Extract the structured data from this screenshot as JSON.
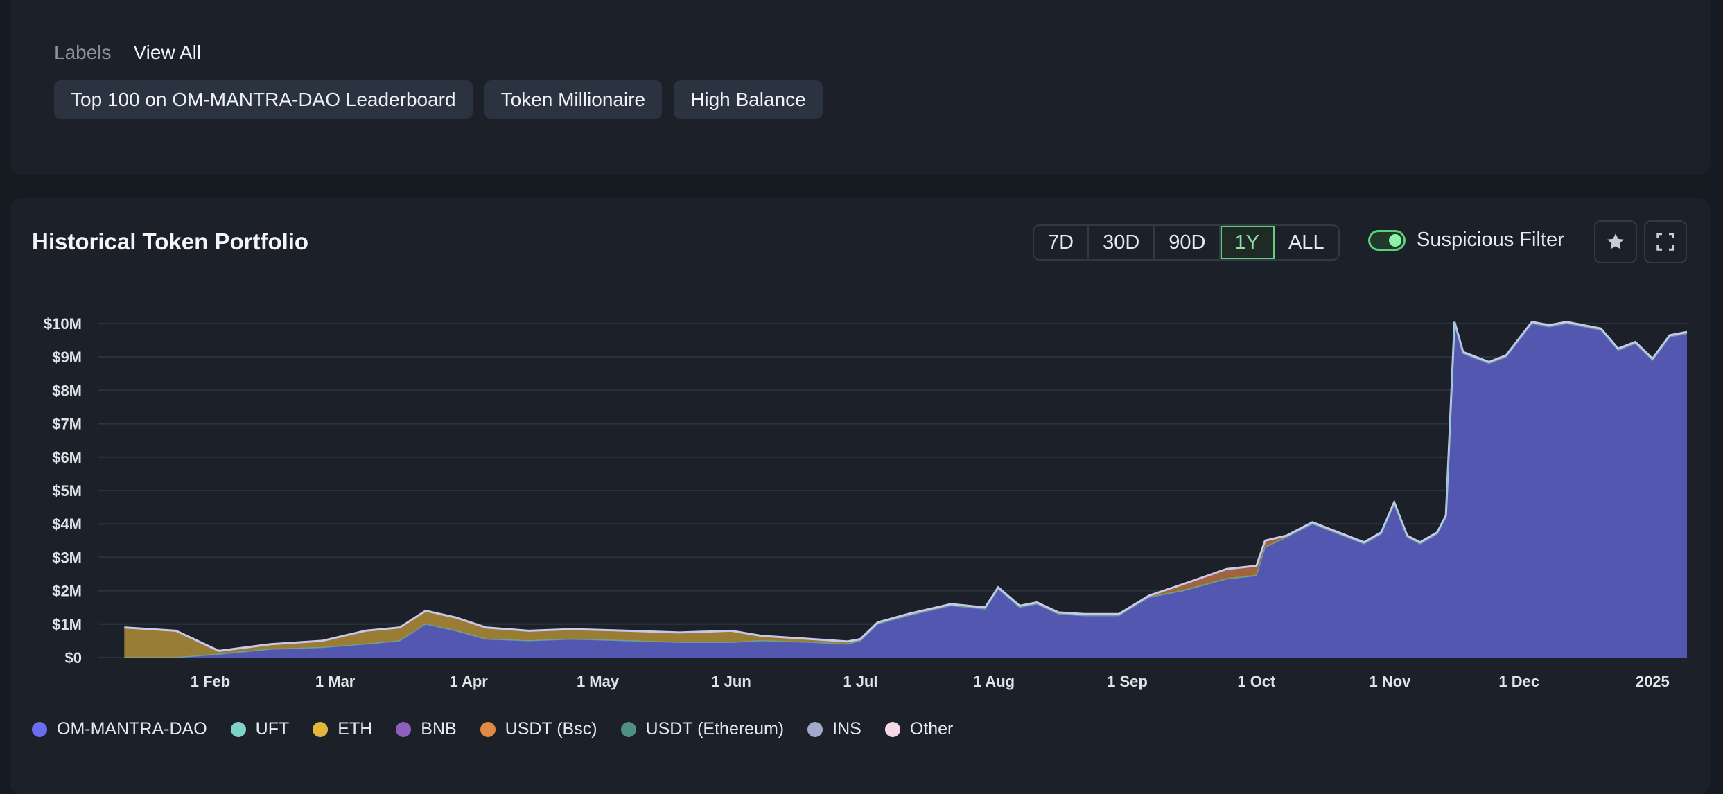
{
  "labels_section": {
    "heading": "Labels",
    "view_all": "View All",
    "chips": [
      "Top 100 on OM-MANTRA-DAO Leaderboard",
      "Token Millionaire",
      "High Balance"
    ]
  },
  "portfolio": {
    "title": "Historical Token Portfolio",
    "ranges": [
      "7D",
      "30D",
      "90D",
      "1Y",
      "ALL"
    ],
    "active_range": "1Y",
    "filter_label": "Suspicious Filter",
    "filter_on": true,
    "icons": {
      "favorite": "star-icon",
      "fullscreen": "expand-icon"
    }
  },
  "colors": {
    "om": "#5457b0",
    "om_line": "#c9c8ec",
    "eth": "#9a7d35",
    "usdt_bsc": "#a06440",
    "uft": "#67c6b8",
    "grid": "#2b3444"
  },
  "chart_data": {
    "type": "area",
    "title": "",
    "xlabel": "",
    "ylabel": "",
    "x_ticks": [
      "1 Feb",
      "1 Mar",
      "1 Apr",
      "1 May",
      "1 Jun",
      "1 Jul",
      "1 Aug",
      "1 Sep",
      "1 Oct",
      "1 Nov",
      "1 Dec",
      "2025"
    ],
    "y_ticks": [
      "$0",
      "$1M",
      "$2M",
      "$3M",
      "$4M",
      "$5M",
      "$6M",
      "$7M",
      "$8M",
      "$9M",
      "$10M"
    ],
    "ylim": [
      0,
      10000000
    ],
    "grid": true,
    "legend": [
      "OM-MANTRA-DAO",
      "UFT",
      "ETH",
      "BNB",
      "USDT (Bsc)",
      "USDT (Ethereum)",
      "INS",
      "Other"
    ],
    "legend_colors": [
      "#6b6cf0",
      "#7fd3c6",
      "#e3b83a",
      "#8d5fbf",
      "#e08a44",
      "#4f8f84",
      "#a3a9c9",
      "#f6d9e6"
    ],
    "legend_position": "bottom",
    "x_dates": [
      "2024-01-12",
      "2024-01-24",
      "2024-02-03",
      "2024-02-15",
      "2024-02-27",
      "2024-03-08",
      "2024-03-16",
      "2024-03-22",
      "2024-03-29",
      "2024-04-05",
      "2024-04-15",
      "2024-04-25",
      "2024-05-08",
      "2024-05-20",
      "2024-06-01",
      "2024-06-08",
      "2024-06-20",
      "2024-06-28",
      "2024-07-01",
      "2024-07-05",
      "2024-07-12",
      "2024-07-22",
      "2024-07-30",
      "2024-08-02",
      "2024-08-07",
      "2024-08-11",
      "2024-08-16",
      "2024-08-22",
      "2024-08-30",
      "2024-09-06",
      "2024-09-14",
      "2024-09-24",
      "2024-10-01",
      "2024-10-03",
      "2024-10-08",
      "2024-10-14",
      "2024-10-20",
      "2024-10-26",
      "2024-10-30",
      "2024-11-02",
      "2024-11-05",
      "2024-11-08",
      "2024-11-12",
      "2024-11-14",
      "2024-11-16",
      "2024-11-18",
      "2024-11-20",
      "2024-11-24",
      "2024-11-28",
      "2024-12-04",
      "2024-12-08",
      "2024-12-12",
      "2024-12-16",
      "2024-12-20",
      "2024-12-24",
      "2024-12-28",
      "2025-01-01",
      "2025-01-05",
      "2025-01-09"
    ],
    "series": [
      {
        "name": "OM-MANTRA-DAO",
        "values": [
          0,
          0,
          100000,
          250000,
          300000,
          400000,
          500000,
          1000000,
          800000,
          550000,
          500000,
          550000,
          500000,
          450000,
          450000,
          500000,
          450000,
          400000,
          500000,
          1000000,
          1250000,
          1550000,
          1450000,
          2050000,
          1500000,
          1600000,
          1300000,
          1250000,
          1250000,
          1800000,
          2000000,
          2350000,
          2450000,
          3300000,
          3600000,
          4000000,
          3700000,
          3400000,
          3700000,
          4600000,
          3600000,
          3400000,
          3700000,
          4200000,
          10000000,
          9100000,
          9000000,
          8800000,
          9000000,
          10000000,
          9900000,
          10000000,
          9900000,
          9800000,
          9200000,
          9400000,
          8900000,
          9600000,
          9700000
        ]
      },
      {
        "name": "ETH",
        "values": [
          900000,
          800000,
          100000,
          150000,
          200000,
          400000,
          400000,
          400000,
          400000,
          350000,
          300000,
          300000,
          300000,
          300000,
          350000,
          150000,
          100000,
          80000,
          50000,
          50000,
          50000,
          50000,
          50000,
          50000,
          50000,
          50000,
          50000,
          50000,
          50000,
          50000,
          50000,
          50000,
          50000,
          50000,
          50000,
          50000,
          50000,
          50000,
          50000,
          50000,
          50000,
          50000,
          50000,
          50000,
          50000,
          50000,
          50000,
          50000,
          50000,
          50000,
          50000,
          50000,
          50000,
          50000,
          50000,
          50000,
          50000,
          50000,
          50000
        ]
      },
      {
        "name": "USDT (Bsc)",
        "values": [
          0,
          0,
          0,
          0,
          0,
          0,
          0,
          0,
          0,
          0,
          0,
          0,
          0,
          0,
          0,
          0,
          0,
          0,
          0,
          0,
          0,
          0,
          0,
          0,
          0,
          0,
          0,
          0,
          0,
          0,
          150000,
          250000,
          250000,
          150000,
          0,
          0,
          0,
          0,
          0,
          0,
          0,
          0,
          0,
          0,
          0,
          0,
          0,
          0,
          0,
          0,
          0,
          0,
          0,
          0,
          0,
          0,
          0,
          0,
          0
        ]
      }
    ]
  }
}
